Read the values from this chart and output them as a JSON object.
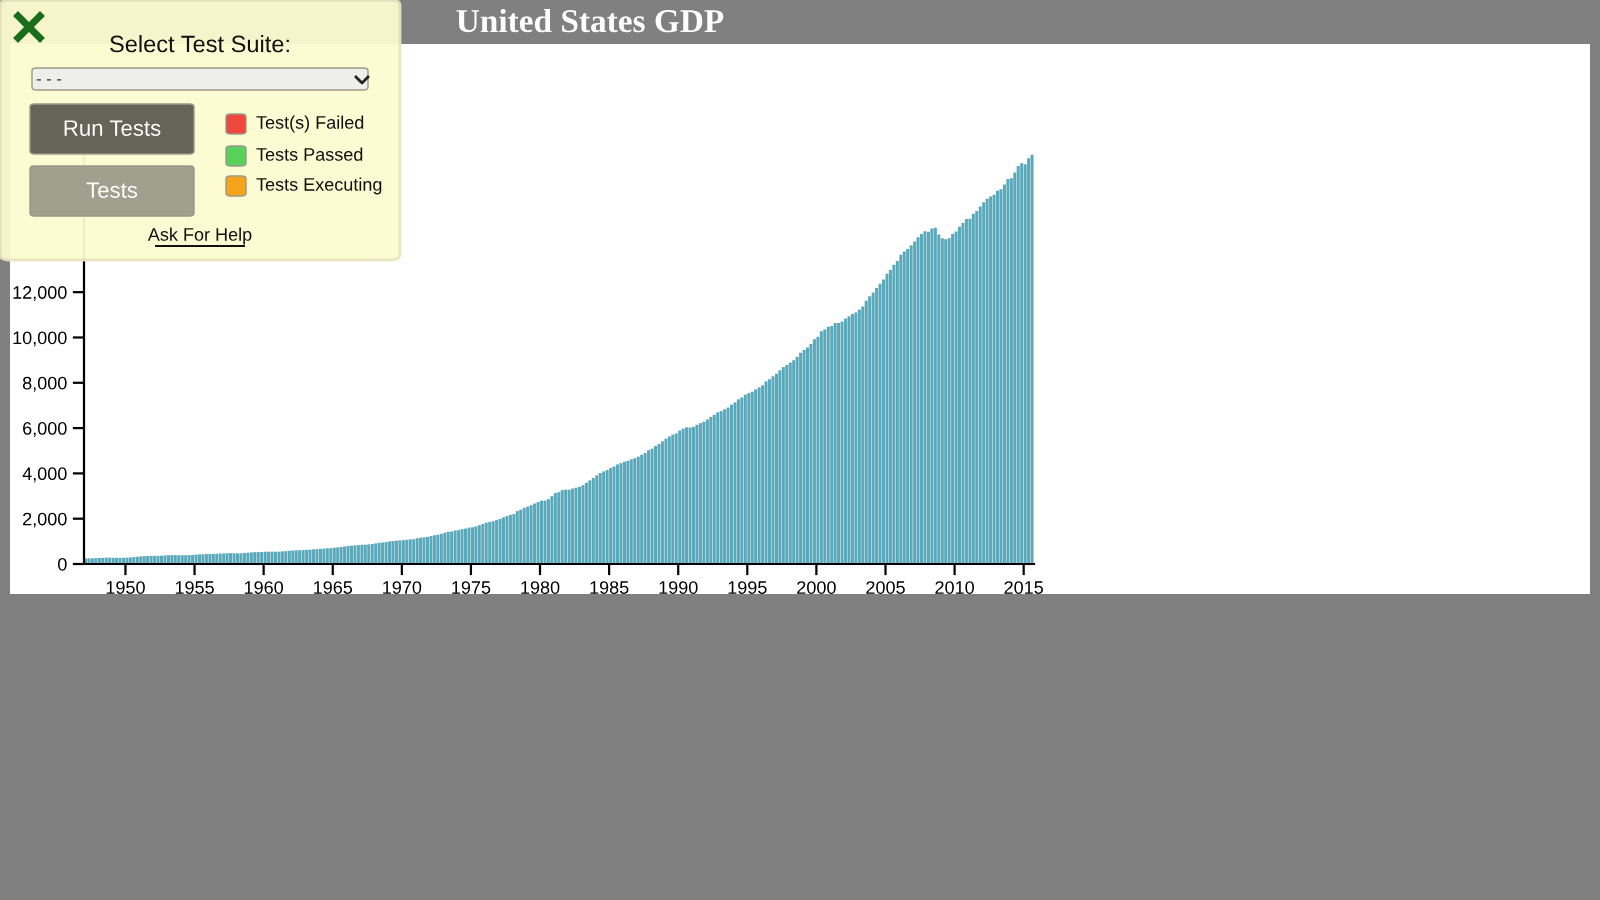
{
  "chart_data": {
    "type": "bar",
    "title": "United States GDP",
    "color": "#5aa9bb",
    "x": [
      "1947-01",
      "1947-04",
      "1947-07",
      "1947-10",
      "1948-01",
      "1948-04",
      "1948-07",
      "1948-10",
      "1949-01",
      "1949-04",
      "1949-07",
      "1949-10",
      "1950-01",
      "1950-04",
      "1950-07",
      "1950-10",
      "1951-01",
      "1951-04",
      "1951-07",
      "1951-10",
      "1952-01",
      "1952-04",
      "1952-07",
      "1952-10",
      "1953-01",
      "1953-04",
      "1953-07",
      "1953-10",
      "1954-01",
      "1954-04",
      "1954-07",
      "1954-10",
      "1955-01",
      "1955-04",
      "1955-07",
      "1955-10",
      "1956-01",
      "1956-04",
      "1956-07",
      "1956-10",
      "1957-01",
      "1957-04",
      "1957-07",
      "1957-10",
      "1958-01",
      "1958-04",
      "1958-07",
      "1958-10",
      "1959-01",
      "1959-04",
      "1959-07",
      "1959-10",
      "1960-01",
      "1960-04",
      "1960-07",
      "1960-10",
      "1961-01",
      "1961-04",
      "1961-07",
      "1961-10",
      "1962-01",
      "1962-04",
      "1962-07",
      "1962-10",
      "1963-01",
      "1963-04",
      "1963-07",
      "1963-10",
      "1964-01",
      "1964-04",
      "1964-07",
      "1964-10",
      "1965-01",
      "1965-04",
      "1965-07",
      "1965-10",
      "1966-01",
      "1966-04",
      "1966-07",
      "1966-10",
      "1967-01",
      "1967-04",
      "1967-07",
      "1967-10",
      "1968-01",
      "1968-04",
      "1968-07",
      "1968-10",
      "1969-01",
      "1969-04",
      "1969-07",
      "1969-10",
      "1970-01",
      "1970-04",
      "1970-07",
      "1970-10",
      "1971-01",
      "1971-04",
      "1971-07",
      "1971-10",
      "1972-01",
      "1972-04",
      "1972-07",
      "1972-10",
      "1973-01",
      "1973-04",
      "1973-07",
      "1973-10",
      "1974-01",
      "1974-04",
      "1974-07",
      "1974-10",
      "1975-01",
      "1975-04",
      "1975-07",
      "1975-10",
      "1976-01",
      "1976-04",
      "1976-07",
      "1976-10",
      "1977-01",
      "1977-04",
      "1977-07",
      "1977-10",
      "1978-01",
      "1978-04",
      "1978-07",
      "1978-10",
      "1979-01",
      "1979-04",
      "1979-07",
      "1979-10",
      "1980-01",
      "1980-04",
      "1980-07",
      "1980-10",
      "1981-01",
      "1981-04",
      "1981-07",
      "1981-10",
      "1982-01",
      "1982-04",
      "1982-07",
      "1982-10",
      "1983-01",
      "1983-04",
      "1983-07",
      "1983-10",
      "1984-01",
      "1984-04",
      "1984-07",
      "1984-10",
      "1985-01",
      "1985-04",
      "1985-07",
      "1985-10",
      "1986-01",
      "1986-04",
      "1986-07",
      "1986-10",
      "1987-01",
      "1987-04",
      "1987-07",
      "1987-10",
      "1988-01",
      "1988-04",
      "1988-07",
      "1988-10",
      "1989-01",
      "1989-04",
      "1989-07",
      "1989-10",
      "1990-01",
      "1990-04",
      "1990-07",
      "1990-10",
      "1991-01",
      "1991-04",
      "1991-07",
      "1991-10",
      "1992-01",
      "1992-04",
      "1992-07",
      "1992-10",
      "1993-01",
      "1993-04",
      "1993-07",
      "1993-10",
      "1994-01",
      "1994-04",
      "1994-07",
      "1994-10",
      "1995-01",
      "1995-04",
      "1995-07",
      "1995-10",
      "1996-01",
      "1996-04",
      "1996-07",
      "1996-10",
      "1997-01",
      "1997-04",
      "1997-07",
      "1997-10",
      "1998-01",
      "1998-04",
      "1998-07",
      "1998-10",
      "1999-01",
      "1999-04",
      "1999-07",
      "1999-10",
      "2000-01",
      "2000-04",
      "2000-07",
      "2000-10",
      "2001-01",
      "2001-04",
      "2001-07",
      "2001-10",
      "2002-01",
      "2002-04",
      "2002-07",
      "2002-10",
      "2003-01",
      "2003-04",
      "2003-07",
      "2003-10",
      "2004-01",
      "2004-04",
      "2004-07",
      "2004-10",
      "2005-01",
      "2005-04",
      "2005-07",
      "2005-10",
      "2006-01",
      "2006-04",
      "2006-07",
      "2006-10",
      "2007-01",
      "2007-04",
      "2007-07",
      "2007-10",
      "2008-01",
      "2008-04",
      "2008-07",
      "2008-10",
      "2009-01",
      "2009-04",
      "2009-07",
      "2009-10",
      "2010-01",
      "2010-04",
      "2010-07",
      "2010-10",
      "2011-01",
      "2011-04",
      "2011-07",
      "2011-10",
      "2012-01",
      "2012-04",
      "2012-07",
      "2012-10",
      "2013-01",
      "2013-04",
      "2013-07",
      "2013-10",
      "2014-01",
      "2014-04",
      "2014-07",
      "2014-10",
      "2015-01",
      "2015-04",
      "2015-07"
    ],
    "xlim": [
      "1947-01-01",
      "2015-10-01"
    ],
    "xticks": [
      {
        "value": "1950-01-01",
        "label": "1950"
      },
      {
        "value": "1955-01-01",
        "label": "1955"
      },
      {
        "value": "1960-01-01",
        "label": "1960"
      },
      {
        "value": "1965-01-01",
        "label": "1965"
      },
      {
        "value": "1970-01-01",
        "label": "1970"
      },
      {
        "value": "1975-01-01",
        "label": "1975"
      },
      {
        "value": "1980-01-01",
        "label": "1980"
      },
      {
        "value": "1985-01-01",
        "label": "1985"
      },
      {
        "value": "1990-01-01",
        "label": "1990"
      },
      {
        "value": "1995-01-01",
        "label": "1995"
      },
      {
        "value": "2000-01-01",
        "label": "2000"
      },
      {
        "value": "2005-01-01",
        "label": "2005"
      },
      {
        "value": "2010-01-01",
        "label": "2010"
      },
      {
        "value": "2015-01-01",
        "label": "2015"
      }
    ],
    "ylim": [
      0,
      18100
    ],
    "yticks": [
      {
        "value": 0,
        "label": "0"
      },
      {
        "value": 2000,
        "label": "2,000"
      },
      {
        "value": 4000,
        "label": "4,000"
      },
      {
        "value": 6000,
        "label": "6,000"
      },
      {
        "value": 8000,
        "label": "8,000"
      },
      {
        "value": 10000,
        "label": "10,000"
      },
      {
        "value": 12000,
        "label": "12,000"
      }
    ],
    "grid": false,
    "legend": false,
    "values": [
      243.1,
      246.3,
      250.1,
      260.3,
      266.2,
      272.9,
      279.5,
      280.7,
      275.4,
      271.7,
      273.3,
      271.0,
      281.2,
      290.7,
      308.5,
      320.3,
      336.4,
      344.5,
      351.8,
      356.6,
      360.2,
      361.4,
      368.1,
      381.2,
      388.5,
      392.3,
      391.7,
      386.5,
      385.9,
      386.7,
      391.6,
      400.3,
      413.8,
      422.2,
      430.9,
      437.8,
      440.5,
      446.8,
      452.0,
      461.3,
      470.6,
      472.8,
      480.3,
      475.7,
      468.4,
      472.8,
      486.7,
      500.4,
      511.1,
      524.2,
      525.2,
      529.3,
      543.3,
      542.7,
      546.0,
      541.1,
      545.9,
      557.4,
      568.2,
      581.6,
      595.2,
      602.6,
      609.6,
      613.1,
      622.7,
      631.8,
      645.0,
      654.8,
      671.1,
      680.8,
      692.8,
      698.4,
      719.2,
      732.4,
      750.2,
      773.1,
      797.3,
      807.2,
      820.8,
      834.9,
      846.0,
      851.1,
      866.6,
      883.2,
      911.1,
      936.3,
      952.3,
      970.1,
      995.4,
      1011.4,
      1032.0,
      1040.7,
      1053.5,
      1070.1,
      1088.5,
      1091.5,
      1137.8,
      1159.4,
      1180.3,
      1193.6,
      1233.8,
      1270.1,
      1293.8,
      1332.0,
      1380.7,
      1417.6,
      1436.8,
      1479.1,
      1494.7,
      1534.2,
      1563.4,
      1603.0,
      1619.6,
      1656.4,
      1713.8,
      1765.9,
      1824.5,
      1856.9,
      1890.5,
      1938.4,
      1992.5,
      2060.2,
      2122.4,
      2168.7,
      2208.7,
      2336.6,
      2398.9,
      2482.2,
      2531.6,
      2595.9,
      2670.4,
      2730.7,
      2796.5,
      2799.9,
      2860.0,
      2993.5,
      3131.8,
      3167.3,
      3261.2,
      3283.5,
      3273.8,
      3331.3,
      3367.1,
      3407.8,
      3480.3,
      3583.8,
      3692.3,
      3796.1,
      3912.8,
      4015.0,
      4087.4,
      4147.6,
      4237.0,
      4302.3,
      4394.6,
      4453.1,
      4516.3,
      4555.2,
      4619.6,
      4669.4,
      4736.2,
      4821.5,
      4900.5,
      5022.7,
      5090.6,
      5207.7,
      5299.5,
      5412.7,
      5527.4,
      5628.4,
      5711.6,
      5763.4,
      5890.8,
      5974.7,
      6029.5,
      6023.3,
      6054.9,
      6143.6,
      6218.4,
      6279.3,
      6380.8,
      6492.3,
      6586.5,
      6697.6,
      6748.2,
      6829.6,
      6904.2,
      7032.8,
      7136.3,
      7269.8,
      7352.3,
      7476.7,
      7545.3,
      7604.9,
      7706.5,
      7799.5,
      7893.1,
      8061.5,
      8159.0,
      8287.1,
      8402.1,
      8551.9,
      8691.8,
      8788.3,
      8889.7,
      8994.7,
      9146.5,
      9325.7,
      9447.1,
      9557.0,
      9712.3,
      9926.1,
      10031.0,
      10278.3,
      10357.4,
      10472.3,
      10508.1,
      10638.4,
      10639.5,
      10701.3,
      10834.4,
      10934.8,
      11037.1,
      11103.8,
      11230.1,
      11370.7,
      11625.1,
      11816.8,
      11988.4,
      12181.4,
      12367.7,
      12562.2,
      12813.7,
      12974.1,
      13205.4,
      13381.6,
      13648.9,
      13799.8,
      13908.5,
      14066.4,
      14233.2,
      14422.3,
      14569.7,
      14685.3,
      14668.4,
      14813.0,
      14843.0,
      14549.9,
      14383.9,
      14340.4,
      14384.1,
      14566.5,
      14681.1,
      14888.6,
      15057.7,
      15230.2,
      15238.4,
      15460.9,
      15587.1,
      15785.3,
      15973.9,
      16121.9,
      16227.9,
      16297.3,
      16475.4,
      16541.4,
      16749.3,
      16999.9,
      17025.2,
      17285.6,
      17569.4,
      17692.2,
      17649.3,
      17913.7,
      18064.7
    ],
    "annotations": [
      "Select Test Suite:",
      "- - -",
      "Run Tests",
      "Tests",
      "Test(s) Failed",
      "Tests Passed",
      "Tests Executing",
      "Ask For Help"
    ]
  }
}
